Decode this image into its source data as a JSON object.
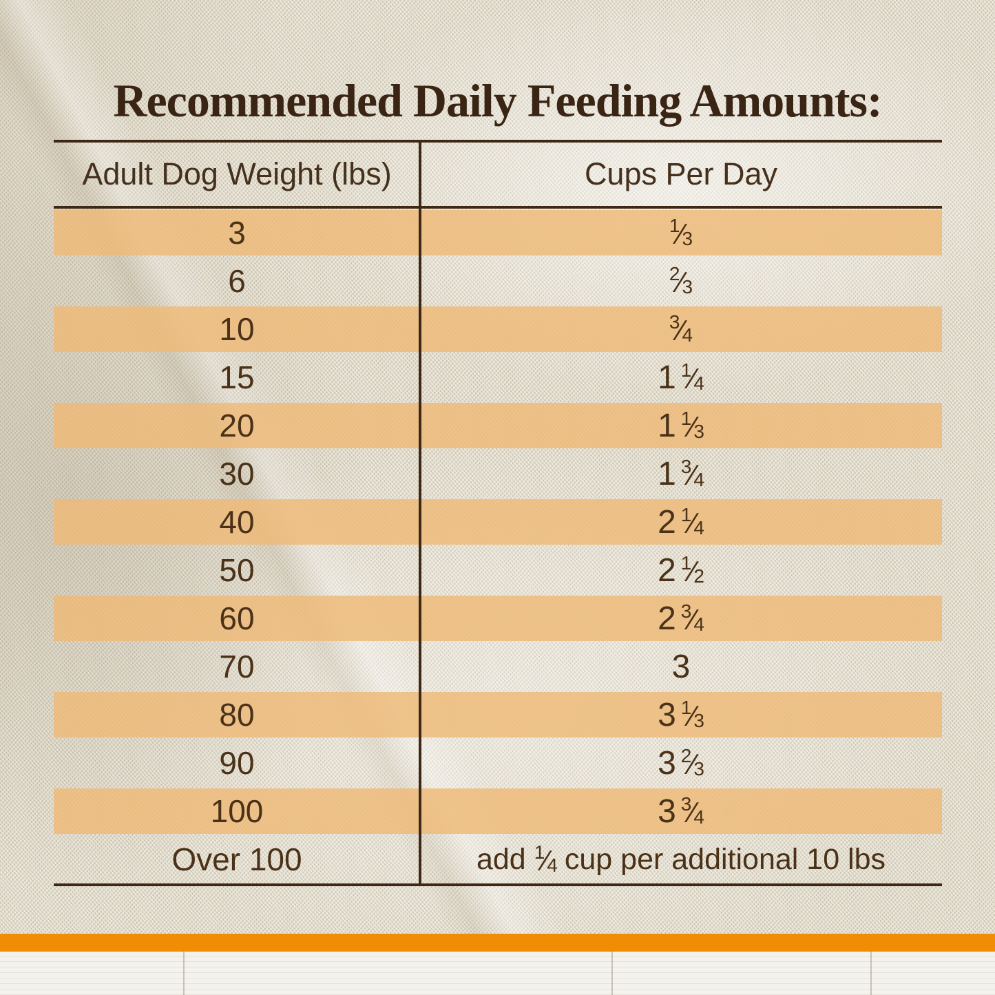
{
  "title": "Recommended Daily Feeding Amounts:",
  "table": {
    "headers": [
      "Adult Dog Weight (lbs)",
      "Cups Per Day"
    ],
    "rows": [
      {
        "weight": "3",
        "cups": {
          "whole": "",
          "num": "1",
          "den": "3"
        },
        "highlight": true
      },
      {
        "weight": "6",
        "cups": {
          "whole": "",
          "num": "2",
          "den": "3"
        },
        "highlight": false
      },
      {
        "weight": "10",
        "cups": {
          "whole": "",
          "num": "3",
          "den": "4"
        },
        "highlight": true
      },
      {
        "weight": "15",
        "cups": {
          "whole": "1",
          "num": "1",
          "den": "4"
        },
        "highlight": false
      },
      {
        "weight": "20",
        "cups": {
          "whole": "1",
          "num": "1",
          "den": "3"
        },
        "highlight": true
      },
      {
        "weight": "30",
        "cups": {
          "whole": "1",
          "num": "3",
          "den": "4"
        },
        "highlight": false
      },
      {
        "weight": "40",
        "cups": {
          "whole": "2",
          "num": "1",
          "den": "4"
        },
        "highlight": true
      },
      {
        "weight": "50",
        "cups": {
          "whole": "2",
          "num": "1",
          "den": "2"
        },
        "highlight": false
      },
      {
        "weight": "60",
        "cups": {
          "whole": "2",
          "num": "3",
          "den": "4"
        },
        "highlight": true
      },
      {
        "weight": "70",
        "cups": {
          "whole": "3",
          "num": "",
          "den": ""
        },
        "highlight": false
      },
      {
        "weight": "80",
        "cups": {
          "whole": "3",
          "num": "1",
          "den": "3"
        },
        "highlight": true
      },
      {
        "weight": "90",
        "cups": {
          "whole": "3",
          "num": "2",
          "den": "3"
        },
        "highlight": false
      },
      {
        "weight": "100",
        "cups": {
          "whole": "3",
          "num": "3",
          "den": "4"
        },
        "highlight": true
      },
      {
        "weight": "Over 100",
        "cups": {
          "prefix": "add",
          "num": "1",
          "den": "4",
          "suffix": "cup per additional 10 lbs"
        },
        "highlight": false
      }
    ]
  },
  "colors": {
    "stripe": "#EFBE7D",
    "accent_bar": "#F18C05",
    "text": "#4A3118",
    "title": "#3A2414",
    "line": "#3C2815"
  }
}
